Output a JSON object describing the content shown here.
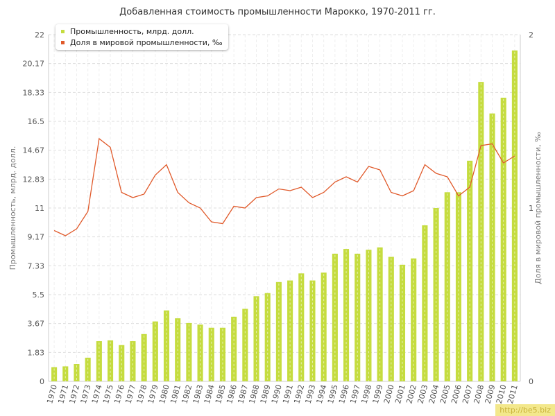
{
  "chart_data": {
    "type": "bar",
    "title": "Добавленная стоимость промышленности Марокко, 1970-2011 гг.",
    "xlabel": "",
    "ylabel": "Промышленность, млрд. долл.",
    "y2label": "Доля в мировой промышленности, ‰",
    "categories": [
      "1970",
      "1971",
      "1972",
      "1973",
      "1974",
      "1975",
      "1976",
      "1977",
      "1978",
      "1979",
      "1980",
      "1981",
      "1982",
      "1983",
      "1984",
      "1985",
      "1986",
      "1987",
      "1988",
      "1989",
      "1990",
      "1991",
      "1992",
      "1993",
      "1994",
      "1995",
      "1996",
      "1997",
      "1998",
      "1999",
      "2000",
      "2001",
      "2002",
      "2003",
      "2004",
      "2005",
      "2006",
      "2007",
      "2008",
      "2009",
      "2010",
      "2011"
    ],
    "ylim": [
      0,
      22
    ],
    "y_ticks": [
      "0",
      "1.83",
      "3.67",
      "5.5",
      "7.33",
      "9.17",
      "11",
      "12.83",
      "14.67",
      "16.5",
      "18.33",
      "20.17",
      "22"
    ],
    "y2lim": [
      0,
      2
    ],
    "y2_ticks": [
      "0",
      "1",
      "2"
    ],
    "grid": true,
    "legend_position": "top-left",
    "series": [
      {
        "name": "Промышленность, млрд. долл.",
        "type": "bar",
        "axis": "left",
        "color": "#c5dc3f",
        "values": [
          0.9,
          0.95,
          1.1,
          1.5,
          2.55,
          2.6,
          2.3,
          2.55,
          3.0,
          3.8,
          4.5,
          4.0,
          3.7,
          3.6,
          3.4,
          3.4,
          4.1,
          4.6,
          5.4,
          5.6,
          6.3,
          6.4,
          6.85,
          6.4,
          6.9,
          8.1,
          8.4,
          8.1,
          8.35,
          8.5,
          7.9,
          7.4,
          7.8,
          9.9,
          11.0,
          12.0,
          12.0,
          14.0,
          19.0,
          17.0,
          18.0,
          21.0
        ]
      },
      {
        "name": "Доля в мировой промышленности, ‰",
        "type": "line",
        "axis": "right",
        "color": "#e0592a",
        "values": [
          0.87,
          0.84,
          0.88,
          0.98,
          1.4,
          1.35,
          1.09,
          1.06,
          1.08,
          1.19,
          1.25,
          1.09,
          1.03,
          1.0,
          0.92,
          0.91,
          1.01,
          1.0,
          1.06,
          1.07,
          1.11,
          1.1,
          1.12,
          1.06,
          1.09,
          1.15,
          1.18,
          1.15,
          1.24,
          1.22,
          1.09,
          1.07,
          1.1,
          1.25,
          1.2,
          1.18,
          1.07,
          1.12,
          1.36,
          1.37,
          1.26,
          1.3
        ]
      }
    ]
  },
  "watermark": "http://be5.biz"
}
